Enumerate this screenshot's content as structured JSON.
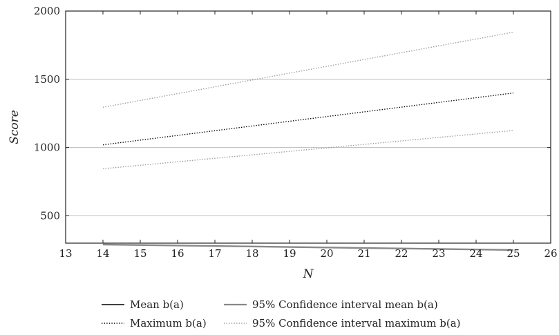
{
  "chart_data": {
    "type": "line",
    "xlabel": "N",
    "ylabel": "Score",
    "xlim": [
      13,
      26
    ],
    "ylim": [
      300,
      2000
    ],
    "xticks": [
      "13",
      "14",
      "15",
      "16",
      "17",
      "18",
      "19",
      "20",
      "21",
      "22",
      "23",
      "24",
      "25",
      "26"
    ],
    "yticks": [
      "500",
      "1000",
      "1500",
      "2000"
    ],
    "grid": "horizontal",
    "legend_position": "bottom",
    "series": [
      {
        "name": "Mean b(a)",
        "color": "#000000",
        "style": "solid",
        "x": [
          14,
          25
        ],
        "y": [
          290,
          250
        ]
      },
      {
        "name": "Maximum b(a)",
        "color": "#000000",
        "style": "dotted",
        "x": [
          14,
          25
        ],
        "y": [
          1020,
          1400
        ]
      },
      {
        "name": "95% Confidence interval mean b(a)",
        "color": "#888888",
        "style": "solid",
        "x": [
          14,
          25
        ],
        "y": [
          290,
          250
        ]
      },
      {
        "name": "95% Confidence interval maximum b(a)",
        "color": "#9a9a9a",
        "style": "dotted",
        "x": [
          14,
          25
        ],
        "y": [
          845,
          1125
        ]
      },
      {
        "name": "95% Confidence interval maximum b(a)",
        "color": "#9a9a9a",
        "style": "dotted",
        "x": [
          14,
          25
        ],
        "y": [
          1295,
          1845
        ]
      }
    ],
    "legend": [
      {
        "label": "Mean b(a)",
        "color": "#000000",
        "style": "solid"
      },
      {
        "label": "95% Confidence interval mean b(a)",
        "color": "#888888",
        "style": "solid"
      },
      {
        "label": "Maximum b(a)",
        "color": "#000000",
        "style": "dotted"
      },
      {
        "label": "95% Confidence interval maximum b(a)",
        "color": "#9a9a9a",
        "style": "dotted"
      }
    ]
  }
}
